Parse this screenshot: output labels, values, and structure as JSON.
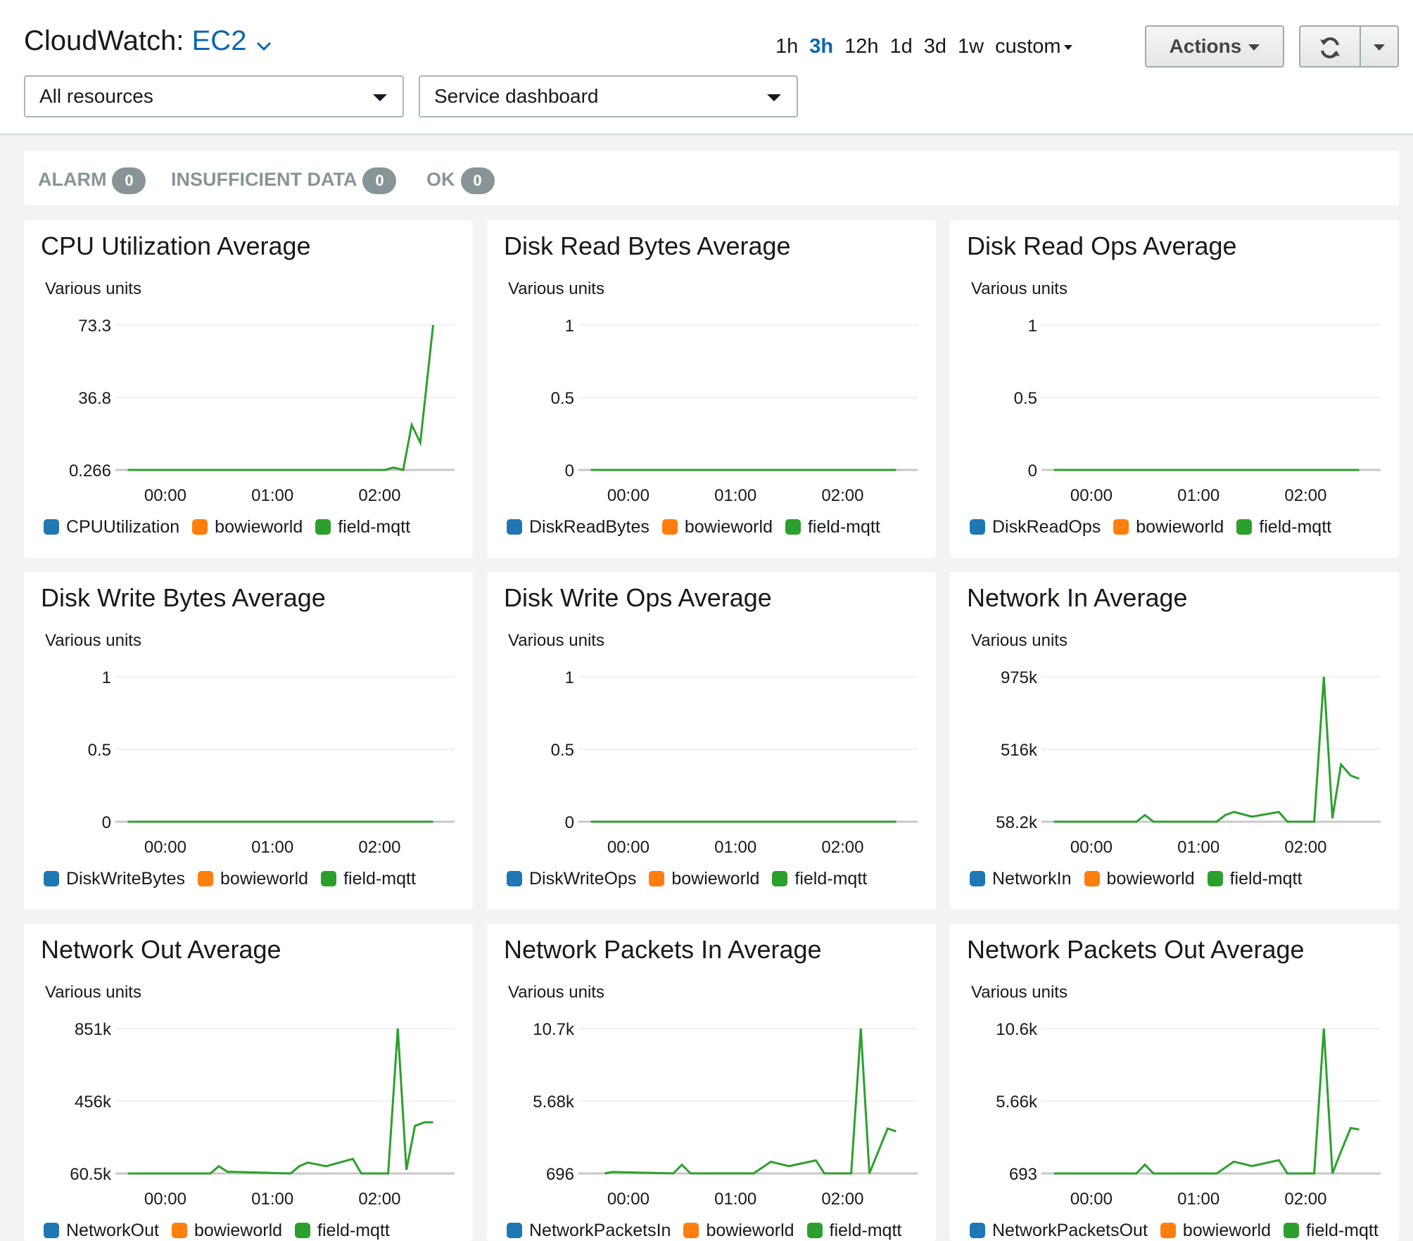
{
  "header": {
    "title_prefix": "CloudWatch: ",
    "service": "EC2",
    "resource_filter": "All resources",
    "dashboard_select": "Service dashboard",
    "time_ranges": [
      "1h",
      "3h",
      "12h",
      "1d",
      "3d",
      "1w",
      "custom"
    ],
    "active_range": "3h",
    "actions_label": "Actions",
    "refresh_icon": "refresh-icon",
    "colors": {
      "link": "#0a66b2",
      "line": "#2ca02c"
    }
  },
  "alarm_summary": [
    {
      "label": "ALARM",
      "count": "0"
    },
    {
      "label": "INSUFFICIENT DATA",
      "count": "0"
    },
    {
      "label": "OK",
      "count": "0"
    }
  ],
  "legend_colors": [
    "#1f77b4",
    "#ff7f0e",
    "#2ca02c"
  ],
  "chart_data": [
    {
      "type": "line",
      "title": "CPU Utilization Average",
      "units": "Various units",
      "yticks": [
        "73.3",
        "36.8",
        "0.266"
      ],
      "ylim": [
        0.266,
        73.3
      ],
      "xticks": [
        "00:00",
        "01:00",
        "02:00"
      ],
      "legend": [
        "CPUUtilization",
        "bowieworld",
        "field-mqtt"
      ],
      "series": [
        {
          "name": "field-mqtt",
          "color": "#2ca02c",
          "x": [
            -0.35,
            2.05,
            2.13,
            2.22,
            2.3,
            2.38,
            2.5
          ],
          "values": [
            0.266,
            0.266,
            1.5,
            0.266,
            23,
            14,
            73.3
          ]
        }
      ]
    },
    {
      "type": "line",
      "title": "Disk Read Bytes Average",
      "units": "Various units",
      "yticks": [
        "1",
        "0.5",
        "0"
      ],
      "ylim": [
        0,
        1
      ],
      "xticks": [
        "00:00",
        "01:00",
        "02:00"
      ],
      "legend": [
        "DiskReadBytes",
        "bowieworld",
        "field-mqtt"
      ],
      "series": [
        {
          "name": "field-mqtt",
          "color": "#2ca02c",
          "x": [
            -0.35,
            2.5
          ],
          "values": [
            0,
            0
          ]
        }
      ]
    },
    {
      "type": "line",
      "title": "Disk Read Ops Average",
      "units": "Various units",
      "yticks": [
        "1",
        "0.5",
        "0"
      ],
      "ylim": [
        0,
        1
      ],
      "xticks": [
        "00:00",
        "01:00",
        "02:00"
      ],
      "legend": [
        "DiskReadOps",
        "bowieworld",
        "field-mqtt"
      ],
      "series": [
        {
          "name": "field-mqtt",
          "color": "#2ca02c",
          "x": [
            -0.35,
            2.5
          ],
          "values": [
            0,
            0
          ]
        }
      ]
    },
    {
      "type": "line",
      "title": "Disk Write Bytes Average",
      "units": "Various units",
      "yticks": [
        "1",
        "0.5",
        "0"
      ],
      "ylim": [
        0,
        1
      ],
      "xticks": [
        "00:00",
        "01:00",
        "02:00"
      ],
      "legend": [
        "DiskWriteBytes",
        "bowieworld",
        "field-mqtt"
      ],
      "series": [
        {
          "name": "field-mqtt",
          "color": "#2ca02c",
          "x": [
            -0.35,
            2.5
          ],
          "values": [
            0,
            0
          ]
        }
      ]
    },
    {
      "type": "line",
      "title": "Disk Write Ops Average",
      "units": "Various units",
      "yticks": [
        "1",
        "0.5",
        "0"
      ],
      "ylim": [
        0,
        1
      ],
      "xticks": [
        "00:00",
        "01:00",
        "02:00"
      ],
      "legend": [
        "DiskWriteOps",
        "bowieworld",
        "field-mqtt"
      ],
      "series": [
        {
          "name": "field-mqtt",
          "color": "#2ca02c",
          "x": [
            -0.35,
            2.5
          ],
          "values": [
            0,
            0
          ]
        }
      ]
    },
    {
      "type": "line",
      "title": "Network In Average",
      "units": "Various units",
      "yticks": [
        "975k",
        "516k",
        "58.2k"
      ],
      "ylim": [
        58200,
        975000
      ],
      "xticks": [
        "00:00",
        "01:00",
        "02:00"
      ],
      "legend": [
        "NetworkIn",
        "bowieworld",
        "field-mqtt"
      ],
      "series": [
        {
          "name": "field-mqtt",
          "color": "#2ca02c",
          "x": [
            -0.35,
            0.42,
            0.5,
            0.58,
            1.17,
            1.25,
            1.33,
            1.5,
            1.75,
            1.83,
            2.08,
            2.17,
            2.25,
            2.33,
            2.42,
            2.5
          ],
          "values": [
            58200,
            58200,
            100000,
            58200,
            58200,
            100000,
            120000,
            90000,
            120000,
            58200,
            58200,
            975000,
            80000,
            420000,
            350000,
            330000
          ]
        }
      ]
    },
    {
      "type": "line",
      "title": "Network Out Average",
      "units": "Various units",
      "yticks": [
        "851k",
        "456k",
        "60.5k"
      ],
      "ylim": [
        60500,
        851000
      ],
      "xticks": [
        "00:00",
        "01:00",
        "02:00"
      ],
      "legend": [
        "NetworkOut",
        "bowieworld",
        "field-mqtt"
      ],
      "series": [
        {
          "name": "field-mqtt",
          "color": "#2ca02c",
          "x": [
            -0.35,
            0.42,
            0.5,
            0.58,
            1.17,
            1.25,
            1.33,
            1.5,
            1.75,
            1.83,
            2.08,
            2.17,
            2.25,
            2.33,
            2.42,
            2.5
          ],
          "values": [
            60500,
            60500,
            100000,
            70000,
            60500,
            100000,
            120000,
            100000,
            140000,
            60500,
            60500,
            851000,
            80000,
            320000,
            340000,
            340000
          ]
        }
      ]
    },
    {
      "type": "line",
      "title": "Network Packets In Average",
      "units": "Various units",
      "yticks": [
        "10.7k",
        "5.68k",
        "696"
      ],
      "ylim": [
        696,
        10700
      ],
      "xticks": [
        "00:00",
        "01:00",
        "02:00"
      ],
      "legend": [
        "NetworkPacketsIn",
        "bowieworld",
        "field-mqtt"
      ],
      "series": [
        {
          "name": "field-mqtt",
          "color": "#2ca02c",
          "x": [
            -0.22,
            -0.15,
            0.42,
            0.5,
            0.58,
            1.17,
            1.33,
            1.5,
            1.75,
            1.83,
            2.08,
            2.17,
            2.25,
            2.42,
            2.5
          ],
          "values": [
            700,
            800,
            700,
            1300,
            700,
            700,
            1500,
            1200,
            1600,
            700,
            700,
            10700,
            700,
            3800,
            3600
          ]
        }
      ]
    },
    {
      "type": "line",
      "title": "Network Packets Out Average",
      "units": "Various units",
      "yticks": [
        "10.6k",
        "5.66k",
        "693"
      ],
      "ylim": [
        693,
        10600
      ],
      "xticks": [
        "00:00",
        "01:00",
        "02:00"
      ],
      "legend": [
        "NetworkPacketsOut",
        "bowieworld",
        "field-mqtt"
      ],
      "series": [
        {
          "name": "field-mqtt",
          "color": "#2ca02c",
          "x": [
            -0.35,
            0.42,
            0.5,
            0.58,
            1.17,
            1.33,
            1.5,
            1.75,
            1.83,
            2.08,
            2.17,
            2.25,
            2.33,
            2.42,
            2.5
          ],
          "values": [
            693,
            693,
            1300,
            693,
            693,
            1500,
            1200,
            1600,
            693,
            693,
            10600,
            693,
            2200,
            3800,
            3700
          ]
        }
      ]
    }
  ]
}
